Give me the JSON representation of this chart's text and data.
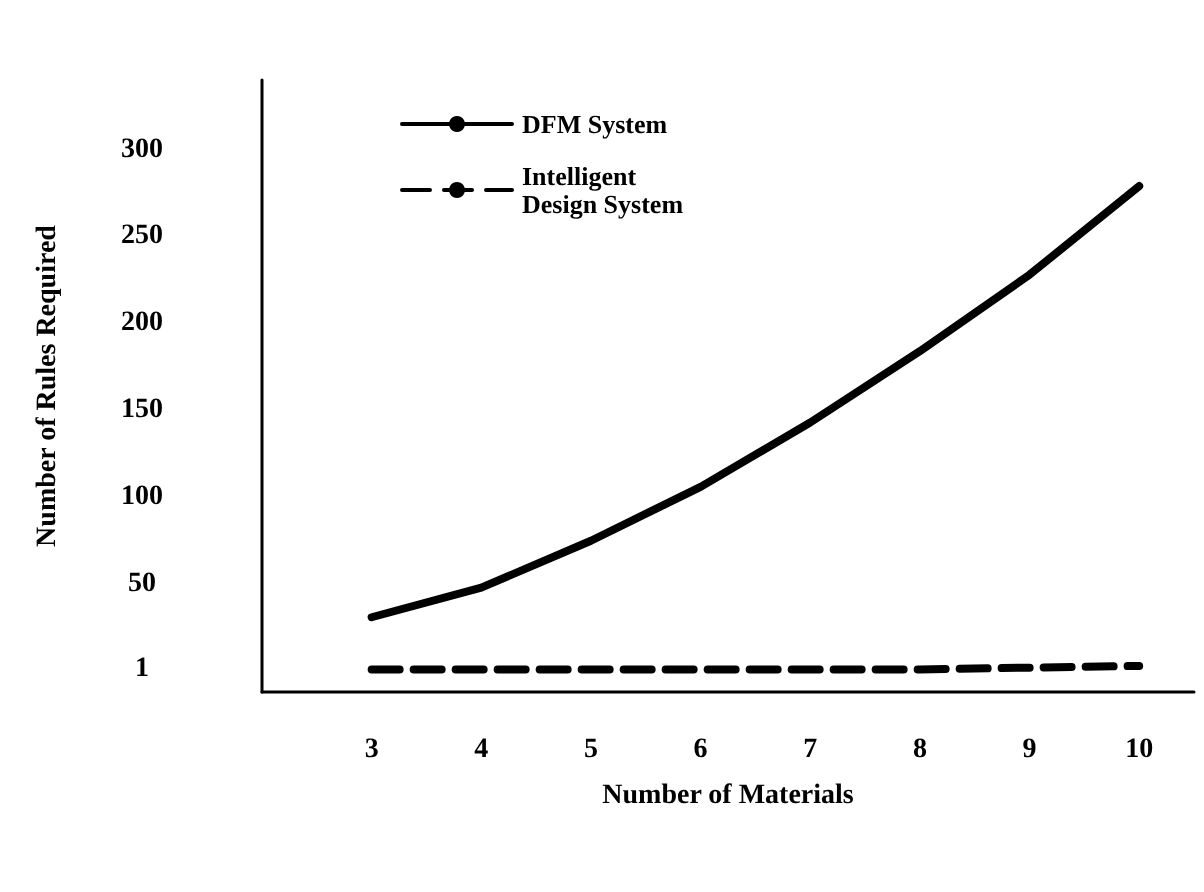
{
  "chart_data": {
    "type": "line",
    "xlabel": "Number of Materials",
    "ylabel": "Number of Rules Required",
    "x": [
      3,
      4,
      5,
      6,
      7,
      8,
      9,
      10
    ],
    "series": [
      {
        "name": "DFM System",
        "color": "#000000",
        "line_style": "solid",
        "values": [
          31,
          48,
          75,
          106,
          143,
          184,
          228,
          279
        ]
      },
      {
        "name": "Intelligent\nDesign System",
        "color": "#000000",
        "line_style": "dashed",
        "values": [
          1,
          1,
          1,
          1,
          1,
          1,
          2,
          3
        ]
      }
    ],
    "xlim": [
      2,
      10.5
    ],
    "xticks": [
      3,
      4,
      5,
      6,
      7,
      8,
      9,
      10
    ],
    "ylim": [
      -12,
      340
    ],
    "yticks": [
      1,
      50,
      100,
      150,
      200,
      250,
      300
    ],
    "grid": false,
    "legend": "top left",
    "marker": "none"
  }
}
